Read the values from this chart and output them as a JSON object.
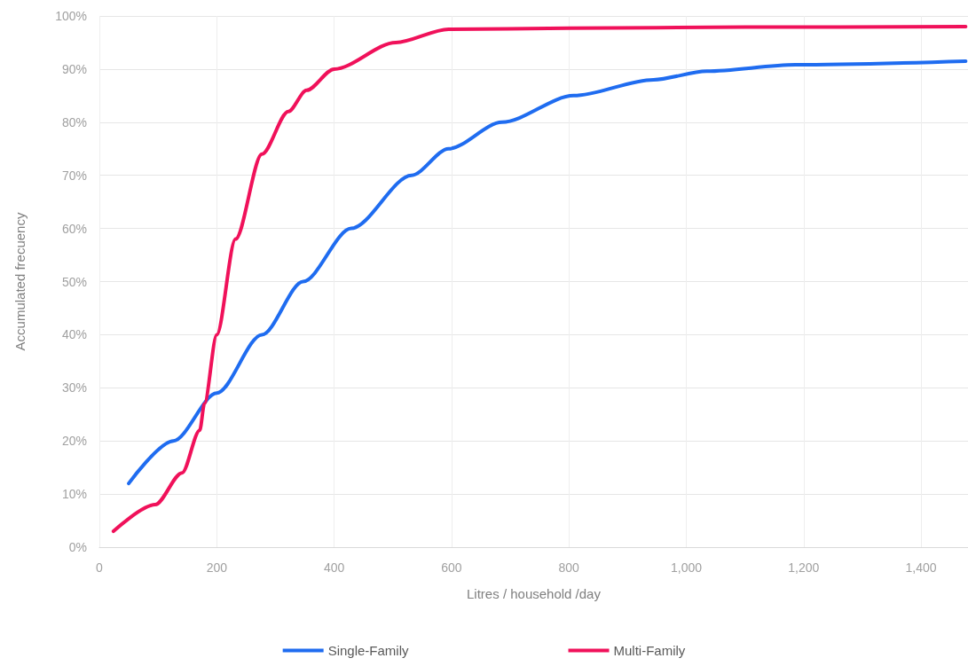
{
  "chart_data": {
    "type": "line",
    "xlabel": "Litres / household /day",
    "ylabel": "Accumulated frecuency",
    "xlim": [
      0,
      1480
    ],
    "xticks": [
      0,
      200,
      400,
      600,
      800,
      {
        "value": 1000,
        "label": "1,000"
      },
      {
        "value": 1200,
        "label": "1,200"
      },
      {
        "value": 1400,
        "label": "1,400"
      }
    ],
    "ylim": [
      0,
      100
    ],
    "yticks": [
      {
        "value": 0,
        "label": "0%"
      },
      {
        "value": 10,
        "label": "10%"
      },
      {
        "value": 20,
        "label": "20%"
      },
      {
        "value": 30,
        "label": "30%"
      },
      {
        "value": 40,
        "label": "40%"
      },
      {
        "value": 50,
        "label": "50%"
      },
      {
        "value": 60,
        "label": "60%"
      },
      {
        "value": 70,
        "label": "70%"
      },
      {
        "value": 80,
        "label": "80%"
      },
      {
        "value": 90,
        "label": "90%"
      },
      {
        "value": 100,
        "label": "100%"
      }
    ],
    "grid": true,
    "legend": "bottom",
    "marker": "none",
    "line_style": "solid",
    "series": [
      {
        "name": "Single-Family",
        "color": "#1f6cf0",
        "x": [
          50,
          126,
          200,
          277,
          347,
          429,
          532,
          595,
          686,
          808,
          944,
          1035,
          1186,
          1476
        ],
        "values": [
          12,
          20,
          29,
          40,
          50,
          60,
          70,
          75,
          80,
          85,
          88,
          89.6,
          90.8,
          91.5
        ]
      },
      {
        "name": "Multi-Family",
        "color": "#f0115a",
        "x": [
          24,
          95,
          141,
          171,
          179,
          200,
          232,
          277,
          322,
          353,
          400,
          505,
          595,
          800,
          1100,
          1476
        ],
        "values": [
          3,
          8,
          14,
          22,
          27,
          40,
          58,
          74,
          82,
          86,
          90,
          95,
          97.5,
          97.7,
          97.9,
          98
        ]
      }
    ]
  }
}
